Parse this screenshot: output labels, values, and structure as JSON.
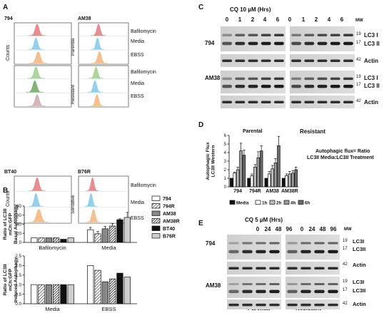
{
  "panels": {
    "A": {
      "letter": "A",
      "top_left_label": "794",
      "top_right_label": "AM38",
      "bottom_left_label": "BT40",
      "bottom_right_label": "B76R",
      "y_label": "Counts",
      "group_parental": "Parental",
      "group_resistant": "Resistant",
      "group_sensitive": "Sensitive",
      "conditions": [
        "Bafilomycin",
        "Media",
        "EBSS"
      ],
      "colors": {
        "bafilomycin": "#e8787c",
        "media": "#7ec8ec",
        "ebss": "#f3b57a",
        "media_resistant": "#6fa860",
        "ebss_resistant": "#cfa8a8",
        "baf_resistant": "#9bd08a"
      }
    },
    "B": {
      "letter": "B",
      "legend": [
        {
          "name": "794",
          "pattern": "white"
        },
        {
          "name": "794R",
          "pattern": "hatch"
        },
        {
          "name": "AM38",
          "pattern": "gray"
        },
        {
          "name": "AM38R",
          "pattern": "hatchdark"
        },
        {
          "name": "BT40",
          "pattern": "black"
        },
        {
          "name": "B76R",
          "pattern": "lightgray"
        }
      ]
    },
    "C": {
      "letter": "C",
      "title": "CQ 10 µM (Hrs)",
      "timepoints": [
        "0",
        "1",
        "2",
        "4",
        "6",
        "0",
        "1",
        "2",
        "4",
        "6"
      ],
      "mw_label": "MW",
      "cell_lines": [
        "794",
        "AM38"
      ],
      "bands": [
        "LC3 I",
        "LC3 II",
        "Actin"
      ],
      "mw": [
        "19",
        "17",
        "42"
      ]
    },
    "D": {
      "letter": "D",
      "group_parental": "Parental",
      "group_resistant": "Resistant",
      "annotation_line1": "Autophagic flux= Ratio",
      "annotation_line2": "LC3II Media:LC3II Treatment",
      "legend": [
        "Media",
        "1h",
        "2h",
        "4h",
        "6h"
      ]
    },
    "E": {
      "letter": "E",
      "title": "CQ 5 µM (Hrs)",
      "timepoints": [
        "0",
        "24",
        "48",
        "96",
        "0",
        "24",
        "48",
        "96"
      ],
      "mw_label": "MW",
      "cell_lines": [
        "794",
        "AM38"
      ],
      "bands": [
        "LC3I",
        "LC3II",
        "Actin"
      ],
      "mw": [
        "19",
        "17",
        "42"
      ],
      "group_parental": "Parental",
      "group_resistant": "Resistant"
    }
  },
  "chart_data": [
    {
      "type": "bar",
      "id": "B-top",
      "ylabel": "Ratio of LC3II mCh:GFP Basal Autophagy",
      "categories": [
        "Bafilomycin",
        "Media"
      ],
      "ylim": [
        0,
        80
      ],
      "yticks": [
        0,
        20,
        40,
        60,
        80
      ],
      "series": [
        {
          "name": "794",
          "values": [
            10,
            28
          ],
          "err": [
            0,
            5
          ]
        },
        {
          "name": "794R",
          "values": [
            10,
            19
          ],
          "err": [
            0,
            5
          ]
        },
        {
          "name": "AM38",
          "values": [
            10,
            30
          ],
          "err": [
            0,
            5
          ]
        },
        {
          "name": "AM38R",
          "values": [
            10,
            36
          ],
          "err": [
            0,
            5
          ]
        },
        {
          "name": "BT40",
          "values": [
            7,
            50
          ],
          "err": [
            0,
            2
          ]
        },
        {
          "name": "B76R",
          "values": [
            10,
            55
          ],
          "err": [
            0,
            11
          ]
        }
      ]
    },
    {
      "type": "bar",
      "id": "B-bottom",
      "ylabel": "Ratio of LC3II mCh:GFP Induced Autophagy",
      "categories": [
        "Media",
        "EBSS"
      ],
      "ylim": [
        0,
        2.5
      ],
      "yticks": [
        0,
        0.5,
        1,
        1.5,
        2,
        2.5
      ],
      "ytick_labels": [
        "0.0",
        "0.5",
        "1.0",
        "1.5",
        "2.0",
        "2.5"
      ],
      "series": [
        {
          "name": "794",
          "values": [
            1.0,
            2.0
          ],
          "err": [
            0,
            0
          ]
        },
        {
          "name": "794R",
          "values": [
            1.0,
            1.75
          ],
          "err": [
            0,
            0
          ]
        },
        {
          "name": "AM38",
          "values": [
            1.0,
            1.15
          ],
          "err": [
            0,
            0
          ]
        },
        {
          "name": "AM38R",
          "values": [
            1.0,
            1.3
          ],
          "err": [
            0,
            0
          ]
        },
        {
          "name": "BT40",
          "values": [
            1.0,
            1.6
          ],
          "err": [
            0,
            0
          ]
        },
        {
          "name": "B76R",
          "values": [
            1.0,
            1.4
          ],
          "err": [
            0,
            0
          ]
        }
      ]
    },
    {
      "type": "bar",
      "id": "D",
      "ylabel": "Autophagic Flux LC3II Western",
      "categories": [
        "794",
        "794R",
        "AM38",
        "AM38R"
      ],
      "ylim": [
        0,
        6
      ],
      "yticks": [
        0,
        1,
        2,
        3,
        4,
        5,
        6
      ],
      "series": [
        {
          "name": "Media",
          "values": [
            1.0,
            1.0,
            1.0,
            1.0
          ],
          "err": [
            0,
            0,
            0,
            0
          ]
        },
        {
          "name": "1h",
          "values": [
            1.6,
            1.3,
            1.5,
            1.3
          ],
          "err": [
            0.1,
            0.2,
            0.3,
            0.2
          ]
        },
        {
          "name": "2h",
          "values": [
            2.0,
            2.3,
            2.1,
            1.5
          ],
          "err": [
            0.3,
            0.3,
            0.4,
            0.3
          ]
        },
        {
          "name": "4h",
          "values": [
            4.2,
            3.4,
            2.8,
            1.6
          ],
          "err": [
            0.9,
            0.7,
            0.5,
            0.3
          ]
        },
        {
          "name": "6h",
          "values": [
            3.7,
            4.2,
            4.8,
            2.0
          ],
          "err": [
            0.6,
            0.6,
            1.1,
            0.3
          ]
        }
      ]
    }
  ]
}
